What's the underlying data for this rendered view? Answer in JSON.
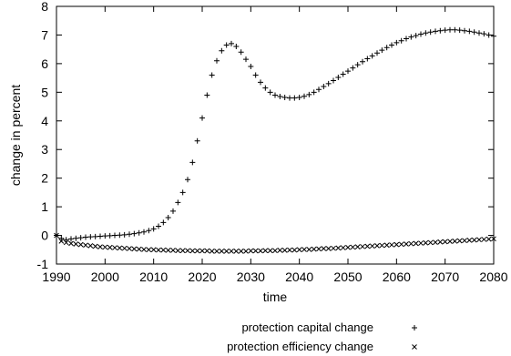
{
  "chart_data": {
    "type": "scatter",
    "xlabel": "time",
    "ylabel": "change in percent",
    "xlim": [
      1990,
      2080
    ],
    "ylim": [
      -1,
      8
    ],
    "xticks": [
      1990,
      2000,
      2010,
      2020,
      2030,
      2040,
      2050,
      2060,
      2070,
      2080
    ],
    "yticks": [
      -1,
      0,
      1,
      2,
      3,
      4,
      5,
      6,
      7,
      8
    ],
    "grid": false,
    "legend_position": "bottom",
    "series": [
      {
        "name": "protection capital change",
        "marker": "plus",
        "color": "#000000",
        "x": [
          1990,
          1991,
          1992,
          1993,
          1994,
          1995,
          1996,
          1997,
          1998,
          1999,
          2000,
          2001,
          2002,
          2003,
          2004,
          2005,
          2006,
          2007,
          2008,
          2009,
          2010,
          2011,
          2012,
          2013,
          2014,
          2015,
          2016,
          2017,
          2018,
          2019,
          2020,
          2021,
          2022,
          2023,
          2024,
          2025,
          2026,
          2027,
          2028,
          2029,
          2030,
          2031,
          2032,
          2033,
          2034,
          2035,
          2036,
          2037,
          2038,
          2039,
          2040,
          2041,
          2042,
          2043,
          2044,
          2045,
          2046,
          2047,
          2048,
          2049,
          2050,
          2051,
          2052,
          2053,
          2054,
          2055,
          2056,
          2057,
          2058,
          2059,
          2060,
          2061,
          2062,
          2063,
          2064,
          2065,
          2066,
          2067,
          2068,
          2069,
          2070,
          2071,
          2072,
          2073,
          2074,
          2075,
          2076,
          2077,
          2078,
          2079,
          2080
        ],
        "y": [
          0.0,
          -0.1,
          -0.15,
          -0.12,
          -0.1,
          -0.08,
          -0.06,
          -0.05,
          -0.04,
          -0.03,
          -0.02,
          -0.01,
          0.0,
          0.01,
          0.02,
          0.04,
          0.06,
          0.09,
          0.12,
          0.17,
          0.23,
          0.32,
          0.45,
          0.62,
          0.85,
          1.15,
          1.5,
          1.95,
          2.55,
          3.3,
          4.1,
          4.9,
          5.6,
          6.1,
          6.45,
          6.65,
          6.7,
          6.6,
          6.4,
          6.15,
          5.9,
          5.6,
          5.35,
          5.15,
          5.0,
          4.9,
          4.85,
          4.82,
          4.8,
          4.8,
          4.82,
          4.86,
          4.92,
          5.0,
          5.1,
          5.2,
          5.3,
          5.41,
          5.52,
          5.63,
          5.74,
          5.85,
          5.96,
          6.07,
          6.17,
          6.27,
          6.37,
          6.47,
          6.56,
          6.65,
          6.73,
          6.8,
          6.87,
          6.93,
          6.98,
          7.03,
          7.07,
          7.1,
          7.13,
          7.15,
          7.17,
          7.18,
          7.18,
          7.17,
          7.15,
          7.13,
          7.1,
          7.07,
          7.04,
          7.0,
          6.96
        ]
      },
      {
        "name": "protection efficiency change",
        "marker": "cross",
        "color": "#000000",
        "x": [
          1990,
          1991,
          1992,
          1993,
          1994,
          1995,
          1996,
          1997,
          1998,
          1999,
          2000,
          2001,
          2002,
          2003,
          2004,
          2005,
          2006,
          2007,
          2008,
          2009,
          2010,
          2011,
          2012,
          2013,
          2014,
          2015,
          2016,
          2017,
          2018,
          2019,
          2020,
          2021,
          2022,
          2023,
          2024,
          2025,
          2026,
          2027,
          2028,
          2029,
          2030,
          2031,
          2032,
          2033,
          2034,
          2035,
          2036,
          2037,
          2038,
          2039,
          2040,
          2041,
          2042,
          2043,
          2044,
          2045,
          2046,
          2047,
          2048,
          2049,
          2050,
          2051,
          2052,
          2053,
          2054,
          2055,
          2056,
          2057,
          2058,
          2059,
          2060,
          2061,
          2062,
          2063,
          2064,
          2065,
          2066,
          2067,
          2068,
          2069,
          2070,
          2071,
          2072,
          2073,
          2074,
          2075,
          2076,
          2077,
          2078,
          2079,
          2080
        ],
        "y": [
          0.0,
          -0.2,
          -0.25,
          -0.28,
          -0.3,
          -0.32,
          -0.34,
          -0.36,
          -0.38,
          -0.4,
          -0.41,
          -0.42,
          -0.43,
          -0.44,
          -0.45,
          -0.46,
          -0.47,
          -0.48,
          -0.49,
          -0.5,
          -0.5,
          -0.51,
          -0.51,
          -0.52,
          -0.52,
          -0.53,
          -0.53,
          -0.53,
          -0.54,
          -0.54,
          -0.54,
          -0.54,
          -0.55,
          -0.55,
          -0.55,
          -0.55,
          -0.55,
          -0.55,
          -0.55,
          -0.55,
          -0.54,
          -0.54,
          -0.54,
          -0.53,
          -0.53,
          -0.53,
          -0.52,
          -0.52,
          -0.51,
          -0.51,
          -0.5,
          -0.49,
          -0.49,
          -0.48,
          -0.47,
          -0.46,
          -0.46,
          -0.45,
          -0.44,
          -0.43,
          -0.42,
          -0.41,
          -0.4,
          -0.39,
          -0.38,
          -0.37,
          -0.36,
          -0.35,
          -0.34,
          -0.33,
          -0.32,
          -0.31,
          -0.3,
          -0.29,
          -0.28,
          -0.27,
          -0.26,
          -0.25,
          -0.24,
          -0.23,
          -0.22,
          -0.21,
          -0.2,
          -0.19,
          -0.18,
          -0.17,
          -0.16,
          -0.15,
          -0.14,
          -0.13,
          -0.12
        ]
      }
    ]
  }
}
